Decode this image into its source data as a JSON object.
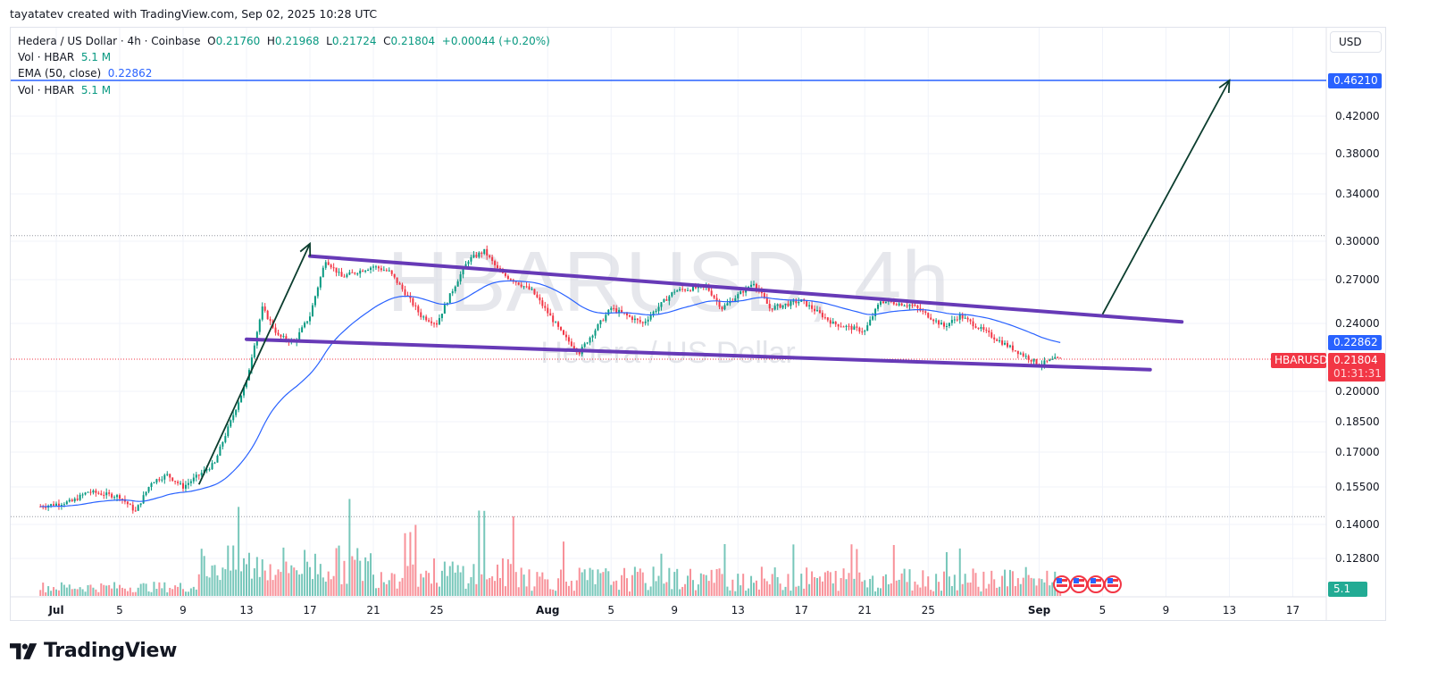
{
  "header": {
    "credit": "tayatatev created with TradingView.com, Sep 02, 2025 10:28 UTC"
  },
  "legend": {
    "symbol_line": "Hedera / US Dollar · 4h · Coinbase",
    "o_label": "O",
    "o_value": "0.21760",
    "h_label": "H",
    "h_value": "0.21968",
    "l_label": "L",
    "l_value": "0.21724",
    "c_label": "C",
    "c_value": "0.21804",
    "change": "+0.00044 (+0.20%)",
    "vol1_label": "Vol · HBAR",
    "vol1_value": "5.1 M",
    "ema_label": "EMA (50, close)",
    "ema_value": "0.22862",
    "vol2_label": "Vol · HBAR",
    "vol2_value": "5.1 M"
  },
  "watermark": {
    "symbol": "HBARUSD, 4h",
    "name": "Hedera / US Dollar"
  },
  "price_axis": {
    "currency_button": "USD",
    "ticks": [
      "0.42000",
      "0.38000",
      "0.34000",
      "0.30000",
      "0.27000",
      "0.24000",
      "0.20000",
      "0.18500",
      "0.17000",
      "0.15500",
      "0.14000",
      "0.12800"
    ],
    "target_label": "0.46210",
    "ema_label": "0.22862",
    "symbol_tag": "HBARUSD",
    "last_price_label": "0.21804",
    "countdown": "01:31:31",
    "volume_label": "5.1 M"
  },
  "time_axis": {
    "ticks": [
      {
        "label": "Jul",
        "bold": true
      },
      {
        "label": "5"
      },
      {
        "label": "9"
      },
      {
        "label": "13"
      },
      {
        "label": "17"
      },
      {
        "label": "21"
      },
      {
        "label": "25"
      },
      {
        "label": "Aug",
        "bold": true
      },
      {
        "label": "5"
      },
      {
        "label": "9"
      },
      {
        "label": "13"
      },
      {
        "label": "17"
      },
      {
        "label": "21"
      },
      {
        "label": "25"
      },
      {
        "label": "Sep",
        "bold": true
      },
      {
        "label": "5"
      },
      {
        "label": "9"
      },
      {
        "label": "13"
      },
      {
        "label": "17"
      }
    ]
  },
  "colors": {
    "up": "#089981",
    "down": "#f23645",
    "ema": "#2962ff",
    "channel": "#673ab7",
    "arrow": "#0b3d2e",
    "target_line": "#2962ff"
  },
  "brand": {
    "name": "TradingView"
  },
  "chart_data": {
    "type": "candlestick",
    "title": "Hedera / US Dollar · 4h · Coinbase",
    "symbol": "HBARUSD",
    "interval": "4h",
    "xlabel": "",
    "ylabel": "USD",
    "x_range": [
      "Jun 30, 2025",
      "Sep 19, 2025"
    ],
    "ylim": [
      0.12,
      0.48
    ],
    "y_scale": "log",
    "grid": true,
    "last": {
      "open": 0.2176,
      "high": 0.21968,
      "low": 0.21724,
      "close": 0.21804,
      "change": 0.00044,
      "change_pct": 0.2
    },
    "ema50_last": 0.22862,
    "volume_last": "5.1M",
    "price_path_daily": [
      {
        "date": "Jun 30",
        "close": 0.147
      },
      {
        "date": "Jul 2",
        "close": 0.149
      },
      {
        "date": "Jul 3",
        "close": 0.153
      },
      {
        "date": "Jul 5",
        "close": 0.151
      },
      {
        "date": "Jul 6",
        "close": 0.145
      },
      {
        "date": "Jul 7",
        "close": 0.157
      },
      {
        "date": "Jul 8",
        "close": 0.16
      },
      {
        "date": "Jul 9",
        "close": 0.155
      },
      {
        "date": "Jul 10",
        "close": 0.16
      },
      {
        "date": "Jul 11",
        "close": 0.165
      },
      {
        "date": "Jul 12",
        "close": 0.185
      },
      {
        "date": "Jul 13",
        "close": 0.205
      },
      {
        "date": "Jul 14",
        "close": 0.25
      },
      {
        "date": "Jul 15",
        "close": 0.232
      },
      {
        "date": "Jul 16",
        "close": 0.228
      },
      {
        "date": "Jul 17",
        "close": 0.245
      },
      {
        "date": "Jul 18",
        "close": 0.285
      },
      {
        "date": "Jul 19",
        "close": 0.272
      },
      {
        "date": "Jul 21",
        "close": 0.28
      },
      {
        "date": "Jul 22",
        "close": 0.276
      },
      {
        "date": "Jul 24",
        "close": 0.245
      },
      {
        "date": "Jul 25",
        "close": 0.24
      },
      {
        "date": "Jul 27",
        "close": 0.285
      },
      {
        "date": "Jul 28",
        "close": 0.292
      },
      {
        "date": "Jul 29",
        "close": 0.275
      },
      {
        "date": "Jul 31",
        "close": 0.262
      },
      {
        "date": "Aug 2",
        "close": 0.232
      },
      {
        "date": "Aug 3",
        "close": 0.222
      },
      {
        "date": "Aug 5",
        "close": 0.25
      },
      {
        "date": "Aug 7",
        "close": 0.24
      },
      {
        "date": "Aug 9",
        "close": 0.262
      },
      {
        "date": "Aug 11",
        "close": 0.265
      },
      {
        "date": "Aug 12",
        "close": 0.25
      },
      {
        "date": "Aug 14",
        "close": 0.268
      },
      {
        "date": "Aug 15",
        "close": 0.25
      },
      {
        "date": "Aug 17",
        "close": 0.255
      },
      {
        "date": "Aug 19",
        "close": 0.24
      },
      {
        "date": "Aug 21",
        "close": 0.235
      },
      {
        "date": "Aug 22",
        "close": 0.255
      },
      {
        "date": "Aug 24",
        "close": 0.252
      },
      {
        "date": "Aug 26",
        "close": 0.238
      },
      {
        "date": "Aug 27",
        "close": 0.245
      },
      {
        "date": "Aug 29",
        "close": 0.232
      },
      {
        "date": "Aug 30",
        "close": 0.226
      },
      {
        "date": "Sep 1",
        "close": 0.215
      },
      {
        "date": "Sep 2",
        "close": 0.218
      }
    ],
    "annotations": [
      {
        "type": "trendline",
        "name": "channel-upper",
        "from": {
          "date": "Jul 17",
          "price": 0.288
        },
        "to": {
          "date": "Sep 10",
          "price": 0.241
        }
      },
      {
        "type": "trendline",
        "name": "channel-lower",
        "from": {
          "date": "Jul 13",
          "price": 0.23
        },
        "to": {
          "date": "Sep 8",
          "price": 0.212
        }
      },
      {
        "type": "arrow",
        "name": "flagpole",
        "from": {
          "date": "Jul 10",
          "price": 0.156
        },
        "to": {
          "date": "Jul 17",
          "price": 0.298
        }
      },
      {
        "type": "arrow",
        "name": "target-projection",
        "from": {
          "date": "Sep 5",
          "price": 0.246
        },
        "to": {
          "date": "Sep 13",
          "price": 0.4621
        }
      },
      {
        "type": "hline",
        "name": "target",
        "price": 0.4621
      },
      {
        "type": "hline",
        "name": "high-marker",
        "price": 0.3045,
        "style": "dotted"
      },
      {
        "type": "hline",
        "name": "low-marker",
        "price": 0.143,
        "style": "dotted"
      }
    ],
    "series": [
      {
        "name": "EMA (50, close)",
        "last": 0.22862
      },
      {
        "name": "Vol · HBAR",
        "last": "5.1M"
      }
    ],
    "events": [
      "US economic event",
      "US economic event",
      "US economic event",
      "US economic event"
    ]
  }
}
